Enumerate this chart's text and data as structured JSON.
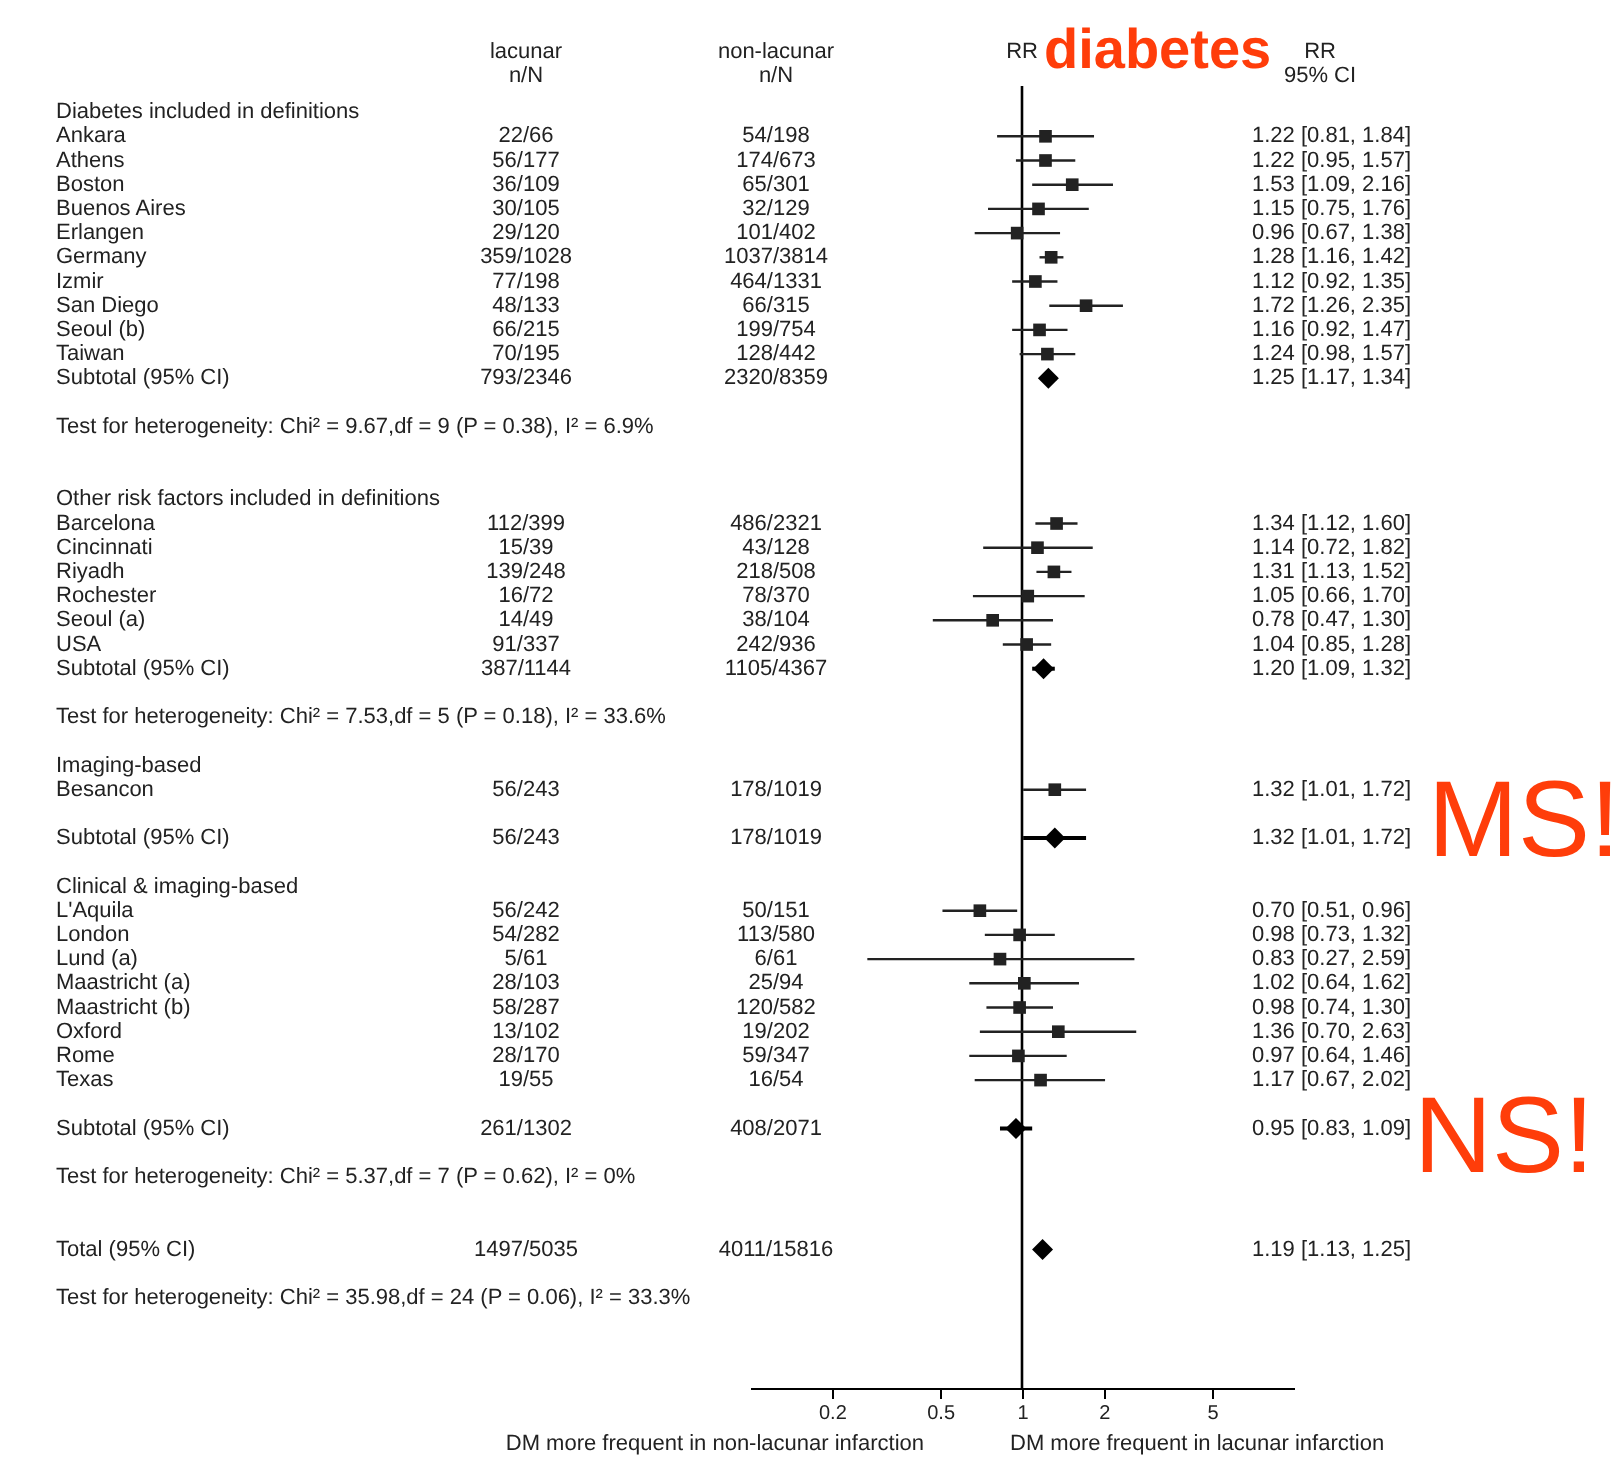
{
  "chart_data": {
    "type": "scatter",
    "orientation": "horizontal",
    "log": "x",
    "xlim": [
      0.1,
      10
    ],
    "xticks": [
      0.2,
      0.5,
      1,
      2,
      5
    ],
    "categories": [
      "Diabetes included in definitions",
      "Ankara",
      "Athens",
      "Boston",
      "Buenos Aires",
      "Erlangen",
      "Germany",
      "Izmir",
      "San Diego",
      "Seoul (b)",
      "Taiwan",
      "Subtotal (95% CI)",
      null,
      "Test for heterogeneity: Chi² = 9.67,df = 9 (P = 0.38), I² = 6.9%",
      null,
      null,
      "Other risk factors included in definitions",
      "Barcelona",
      "Cincinnati",
      "Riyadh",
      "Rochester",
      "Seoul (a)",
      "USA",
      "Subtotal (95% CI)",
      null,
      "Test for heterogeneity: Chi² = 7.53,df = 5 (P = 0.18), I² = 33.6%",
      null,
      "Imaging-based",
      "Besancon",
      null,
      "Subtotal (95% CI)",
      null,
      "Clinical & imaging-based",
      "L'Aquila",
      "London",
      "Lund (a)",
      "Maastricht (a)",
      "Maastricht (b)",
      "Oxford",
      "Rome",
      "Texas",
      null,
      "Subtotal (95% CI)",
      null,
      "Test for heterogeneity: Chi² = 5.37,df = 7 (P = 0.62), I² = 0%",
      null,
      null,
      "Total (95% CI)",
      null,
      "Test for heterogeneity: Chi² = 35.98,df = 24 (P = 0.06), I² = 33.3%"
    ],
    "series": [
      {
        "type": "scatter",
        "marker": "square",
        "color": "#222222",
        "values": [
          null,
          1.22,
          1.22,
          1.53,
          1.15,
          0.96,
          1.28,
          1.12,
          1.72,
          1.16,
          1.24,
          null,
          null,
          null,
          null,
          null,
          null,
          1.34,
          1.14,
          1.31,
          1.05,
          0.78,
          1.04,
          null,
          null,
          null,
          null,
          null,
          1.32,
          null,
          null,
          null,
          null,
          0.7,
          0.98,
          0.83,
          1.02,
          0.98,
          1.36,
          0.97,
          1.17,
          null,
          null,
          null,
          null,
          null,
          null,
          null,
          null,
          null
        ],
        "errors": [
          null,
          [
            0.81,
            1.84
          ],
          [
            0.95,
            1.57
          ],
          [
            1.09,
            2.16
          ],
          [
            0.75,
            1.76
          ],
          [
            0.67,
            1.38
          ],
          [
            1.16,
            1.42
          ],
          [
            0.92,
            1.35
          ],
          [
            1.26,
            2.35
          ],
          [
            0.92,
            1.47
          ],
          [
            0.98,
            1.57
          ],
          null,
          null,
          null,
          null,
          null,
          null,
          [
            1.12,
            1.6
          ],
          [
            0.72,
            1.82
          ],
          [
            1.13,
            1.52
          ],
          [
            0.66,
            1.7
          ],
          [
            0.47,
            1.3
          ],
          [
            0.85,
            1.28
          ],
          null,
          null,
          null,
          null,
          null,
          [
            1.01,
            1.72
          ],
          null,
          null,
          null,
          null,
          [
            0.51,
            0.96
          ],
          [
            0.73,
            1.32
          ],
          [
            0.27,
            2.59
          ],
          [
            0.64,
            1.62
          ],
          [
            0.74,
            1.3
          ],
          [
            0.7,
            2.63
          ],
          [
            0.64,
            1.46
          ],
          [
            0.67,
            2.02
          ],
          null,
          null,
          null,
          null,
          null,
          null,
          null,
          null,
          null
        ],
        "value_labels": [
          null,
          "1.22 [0.81, 1.84]",
          "1.22 [0.95, 1.57]",
          "1.53 [1.09, 2.16]",
          "1.15 [0.75, 1.76]",
          "0.96 [0.67, 1.38]",
          "1.28 [1.16, 1.42]",
          "1.12 [0.92, 1.35]",
          "1.72 [1.26, 2.35]",
          "1.16 [0.92, 1.47]",
          "1.24 [0.98, 1.57]",
          null,
          null,
          null,
          null,
          null,
          null,
          "1.34 [1.12, 1.60]",
          "1.14 [0.72, 1.82]",
          "1.31 [1.13, 1.52]",
          "1.05 [0.66, 1.70]",
          "0.78 [0.47, 1.30]",
          "1.04 [0.85, 1.28]",
          null,
          null,
          null,
          null,
          null,
          "1.32 [1.01, 1.72]",
          null,
          null,
          null,
          null,
          "0.70 [0.51, 0.96]",
          "0.98 [0.73, 1.32]",
          "0.83 [0.27, 2.59]",
          "1.02 [0.64, 1.62]",
          "0.98 [0.74, 1.30]",
          "1.36 [0.70, 2.63]",
          "0.97 [0.64, 1.46]",
          "1.17 [0.67, 2.02]",
          null,
          null,
          null,
          null,
          null,
          null,
          null,
          null,
          null
        ]
      },
      {
        "type": "scatter",
        "marker": "diamond",
        "color": "#000000",
        "values": [
          null,
          null,
          null,
          null,
          null,
          null,
          null,
          null,
          null,
          null,
          null,
          1.25,
          null,
          null,
          null,
          null,
          null,
          null,
          null,
          null,
          null,
          null,
          null,
          1.2,
          null,
          null,
          null,
          null,
          null,
          null,
          1.32,
          null,
          null,
          null,
          null,
          null,
          null,
          null,
          null,
          null,
          null,
          null,
          0.95,
          null,
          null,
          null,
          null,
          1.19,
          null,
          null
        ],
        "errors": [
          null,
          null,
          null,
          null,
          null,
          null,
          null,
          null,
          null,
          null,
          null,
          [
            1.17,
            1.34
          ],
          null,
          null,
          null,
          null,
          null,
          null,
          null,
          null,
          null,
          null,
          null,
          [
            1.09,
            1.32
          ],
          null,
          null,
          null,
          null,
          null,
          null,
          [
            1.01,
            1.72
          ],
          null,
          null,
          null,
          null,
          null,
          null,
          null,
          null,
          null,
          null,
          null,
          [
            0.83,
            1.09
          ],
          null,
          null,
          null,
          null,
          [
            1.13,
            1.25
          ],
          null,
          null
        ]
      }
    ],
    "ref_lines": [
      {
        "axis": "x",
        "value": 1,
        "color": "#000000"
      }
    ],
    "annotations": [
      "lacunar\nn/N",
      "non-lacunar\nn/N",
      "RR",
      "RR\n95% CI",
      "DM more frequent in non-lacunar infarction",
      "DM more frequent in lacunar infarction",
      "diabetes",
      "MS!",
      "NS!",
      "22/66",
      "54/198",
      "56/177",
      "174/673",
      "36/109",
      "65/301",
      "30/105",
      "32/129",
      "29/120",
      "101/402",
      "359/1028",
      "1037/3814",
      "77/198",
      "464/1331",
      "48/133",
      "66/315",
      "66/215",
      "199/754",
      "70/195",
      "128/442",
      "793/2346",
      "2320/8359",
      "112/399",
      "486/2321",
      "15/39",
      "43/128",
      "139/248",
      "218/508",
      "16/72",
      "78/370",
      "14/49",
      "38/104",
      "91/337",
      "242/936",
      "387/1144",
      "1105/4367",
      "56/243",
      "178/1019",
      "56/243",
      "178/1019",
      "56/242",
      "50/151",
      "54/282",
      "113/580",
      "5/61",
      "6/61",
      "28/103",
      "25/94",
      "58/287",
      "120/582",
      "13/102",
      "19/202",
      "28/170",
      "59/347",
      "19/55",
      "16/54",
      "261/1302",
      "408/2071",
      "1497/5035",
      "4011/15816",
      "1.25 [1.17, 1.34]",
      "1.20 [1.09, 1.32]",
      "1.32 [1.01, 1.72]",
      "0.95 [0.83, 1.09]",
      "1.19 [1.13, 1.25]"
    ]
  }
}
